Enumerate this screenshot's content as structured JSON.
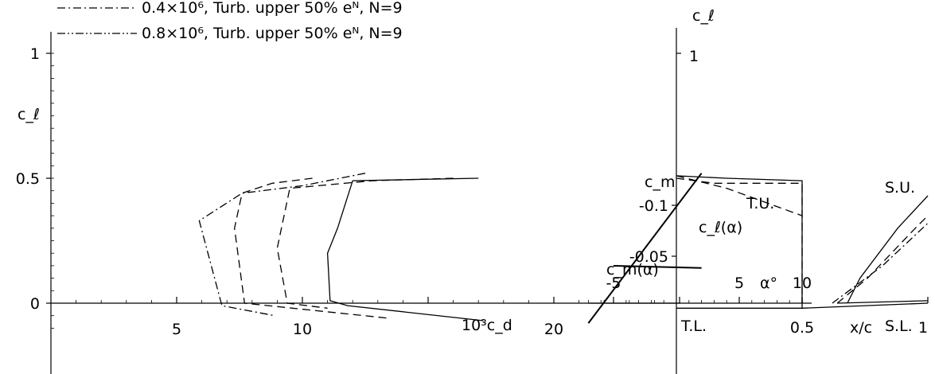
{
  "chart_data": [
    {
      "type": "line",
      "name": "drag_polar",
      "xlabel": "10³c_d",
      "ylabel": "c_ℓ",
      "xlim": [
        0,
        30
      ],
      "ylim": [
        -0.1,
        1.1
      ],
      "x_ticks": [
        "5",
        "10",
        "20"
      ],
      "x_tick_values": [
        5,
        10,
        20
      ],
      "y_ticks": [
        "0",
        "0.5",
        "1"
      ],
      "y_tick_values": [
        0,
        0.5,
        1.0
      ],
      "legend": [
        {
          "label": "0.4×10⁶, Turb. upper 50% eᴺ, N=9",
          "style": "dash-dot"
        },
        {
          "label": "0.8×10⁶, Turb. upper 50% eᴺ, N=9",
          "style": "dash-dot-dot"
        }
      ],
      "legend_position": "top-left",
      "series": [
        {
          "style": "solid",
          "x": [
            17,
            12,
            11.4,
            11,
            11.1,
            11.8,
            17.2
          ],
          "y": [
            0.5,
            0.49,
            0.3,
            0.2,
            0.01,
            -0.01,
            -0.07
          ]
        },
        {
          "style": "dashed",
          "x": [
            16,
            12.8,
            9.5,
            9.0,
            9.4,
            11.0
          ],
          "y": [
            0.5,
            0.49,
            0.46,
            0.22,
            0.0,
            -0.02
          ]
        },
        {
          "style": "dashed",
          "x": [
            10.4,
            8.8,
            7.6,
            7.3,
            7.7,
            13.4
          ],
          "y": [
            0.5,
            0.48,
            0.44,
            0.3,
            0.0,
            -0.06
          ]
        },
        {
          "style": "dash-dot",
          "x": [
            12.5,
            10.0,
            7.6,
            5.9,
            6.8,
            8.9
          ],
          "y": [
            0.52,
            0.47,
            0.44,
            0.33,
            -0.01,
            -0.05
          ]
        }
      ]
    },
    {
      "type": "line",
      "name": "lift_moment_curve",
      "xlabel": "α°",
      "ylabel": "c_m",
      "x_ticks": [
        "-5",
        "5",
        "10"
      ],
      "x_tick_values": [
        -5,
        5,
        10
      ],
      "y_ticks": [
        "-0.05",
        "-0.1"
      ],
      "y_tick_values": [
        -0.05,
        -0.1
      ],
      "xlim": [
        -9,
        11
      ],
      "annotations": [
        "c_ℓ(α)",
        "c_m(α)"
      ],
      "series": [
        {
          "name": "c_ℓ(α)",
          "x": [
            -7,
            2
          ],
          "y": [
            -0.08,
            0.52
          ]
        },
        {
          "name": "c_m(α)",
          "x": [
            -5,
            2
          ],
          "y": [
            -0.04,
            -0.047
          ]
        }
      ]
    },
    {
      "type": "line",
      "name": "transition_location",
      "xlabel": "x/c",
      "ylabel": "c_ℓ",
      "xlim": [
        0,
        1.0
      ],
      "ylim": [
        -0.1,
        1.1
      ],
      "x_ticks": [
        "0.5",
        "1"
      ],
      "x_tick_values": [
        0.5,
        1.0
      ],
      "y_ticks": [
        "1"
      ],
      "y_tick_values": [
        1.0
      ],
      "annotations": [
        "S.U.",
        "T.U.",
        "T.L.",
        "S.L."
      ],
      "series": [
        {
          "name": "T.U.",
          "style": "solid",
          "x": [
            0.0,
            0.2,
            0.5,
            0.5
          ],
          "y": [
            0.51,
            0.5,
            0.49,
            -0.02
          ]
        },
        {
          "name": "T.U.",
          "style": "dashed",
          "x": [
            0.0,
            0.15,
            0.5,
            0.5
          ],
          "y": [
            0.5,
            0.48,
            0.48,
            0.0
          ]
        },
        {
          "name": "T.U.",
          "style": "dashed",
          "x": [
            0.0,
            0.2,
            0.5
          ],
          "y": [
            0.51,
            0.46,
            0.35
          ]
        },
        {
          "name": "T.L.",
          "style": "solid",
          "x": [
            0.0,
            0.5,
            1.0
          ],
          "y": [
            -0.02,
            -0.02,
            0.0
          ]
        },
        {
          "name": "S.U.",
          "style": "solid",
          "x": [
            0.68,
            0.73,
            0.88,
            1.0
          ],
          "y": [
            0.0,
            0.1,
            0.3,
            0.43
          ]
        },
        {
          "name": "S.U.",
          "style": "dashed",
          "x": [
            0.64,
            0.76,
            0.95,
            1.0
          ],
          "y": [
            0.0,
            0.1,
            0.3,
            0.35
          ]
        },
        {
          "name": "S.U.",
          "style": "dash-dot",
          "x": [
            0.62,
            0.82,
            1.0
          ],
          "y": [
            0.0,
            0.15,
            0.32
          ]
        },
        {
          "name": "S.L.",
          "style": "solid",
          "x": [
            0.64,
            1.0
          ],
          "y": [
            0.0,
            0.01
          ]
        }
      ]
    }
  ]
}
